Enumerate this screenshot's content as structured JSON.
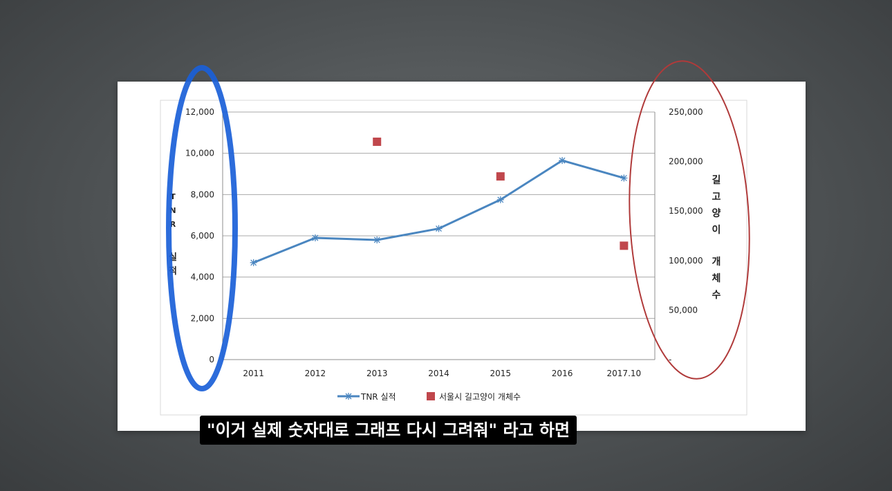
{
  "subtitle": "\"이거 실제 숫자대로 그래프 다시 그려줘\" 라고 하면",
  "chart_data": {
    "type": "line",
    "categories": [
      "2011",
      "2012",
      "2013",
      "2014",
      "2015",
      "2016",
      "2017.10"
    ],
    "series": [
      {
        "name": "TNR 실적",
        "axis": "left",
        "type": "line",
        "marker": "asterisk",
        "color": "#4a86c0",
        "values": [
          4700,
          5900,
          5800,
          6350,
          7750,
          9650,
          8800
        ]
      },
      {
        "name": "서울시 길고양이 개체수",
        "axis": "right",
        "type": "scatter",
        "marker": "square",
        "color": "#c0474c",
        "values": [
          null,
          null,
          220000,
          null,
          185000,
          null,
          115000
        ]
      }
    ],
    "y_left": {
      "label_chars": [
        "T",
        "N",
        "R",
        "",
        "실",
        "적"
      ],
      "ylim": [
        0,
        12000
      ],
      "ticks": [
        0,
        2000,
        4000,
        6000,
        8000,
        10000,
        12000
      ],
      "tick_labels": [
        "0",
        "2,000",
        "4,000",
        "6,000",
        "8,000",
        "10,000",
        "12,000"
      ]
    },
    "y_right": {
      "label_chars": [
        "길",
        "고",
        "양",
        "이",
        "",
        "개",
        "체",
        "수"
      ],
      "ylim": [
        0,
        250000
      ],
      "ticks": [
        0,
        50000,
        100000,
        150000,
        200000,
        250000
      ],
      "tick_labels": [
        "-",
        "50,000",
        "100,000",
        "150,000",
        "200,000",
        "250,000"
      ]
    },
    "grid": true,
    "legend_position": "bottom",
    "annotations": [
      {
        "shape": "ellipse",
        "target": "left-axis",
        "color": "#1a5fd8",
        "style": "thick-marker"
      },
      {
        "shape": "ellipse",
        "target": "right-axis",
        "color": "#b03a3a",
        "style": "thin-pen"
      }
    ]
  }
}
